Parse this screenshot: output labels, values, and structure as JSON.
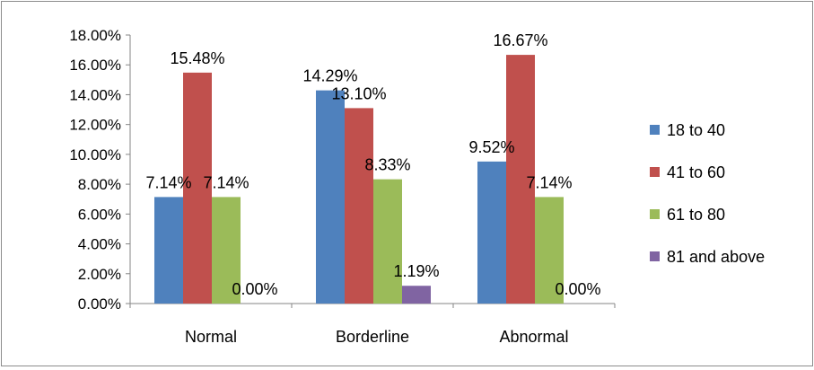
{
  "chart_data": {
    "type": "bar",
    "title": "",
    "xlabel": "",
    "ylabel": "",
    "categories": [
      "Normal",
      "Borderline",
      "Abnormal"
    ],
    "ylim": [
      0,
      18
    ],
    "yticks": [
      "0.00%",
      "2.00%",
      "4.00%",
      "6.00%",
      "8.00%",
      "10.00%",
      "12.00%",
      "14.00%",
      "16.00%",
      "18.00%"
    ],
    "grid": false,
    "legend_position": "right",
    "series": [
      {
        "name": "18 to 40",
        "color": "#4f81bd",
        "values": [
          7.14,
          14.29,
          9.52
        ],
        "labels": [
          "7.14%",
          "14.29%",
          "9.52%"
        ]
      },
      {
        "name": "41 to 60",
        "color": "#c0504d",
        "values": [
          15.48,
          13.1,
          16.67
        ],
        "labels": [
          "15.48%",
          "13.10%",
          "16.67%"
        ]
      },
      {
        "name": "61 to 80",
        "color": "#9bbb59",
        "values": [
          7.14,
          8.33,
          7.14
        ],
        "labels": [
          "7.14%",
          "8.33%",
          "7.14%"
        ]
      },
      {
        "name": "81 and above",
        "color": "#8064a2",
        "values": [
          0.0,
          1.19,
          0.0
        ],
        "labels": [
          "0.00%",
          "1.19%",
          "0.00%"
        ]
      }
    ]
  }
}
